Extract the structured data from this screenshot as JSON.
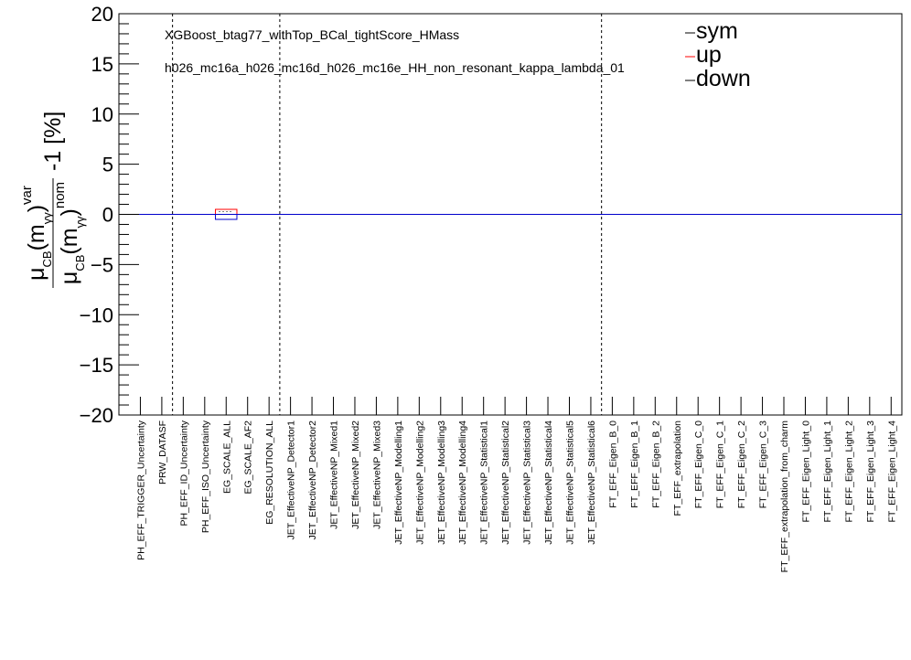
{
  "chart_data": {
    "type": "bar",
    "ylabel": "μ_CB(m_γγ)^var / μ_CB(m_γγ)^nom -1 [%]",
    "ylim": [
      -20,
      20
    ],
    "yticks": [
      -20,
      -15,
      -10,
      -5,
      0,
      5,
      10,
      15,
      20
    ],
    "annotations": [
      "XGBoost_btag77_withTop_BCal_tightScore_HMass",
      "h026_mc16a_h026_mc16d_h026_mc16e_HH_non_resonant_kappa_lambda_01"
    ],
    "legend_position": "top-right",
    "separator_after_category": [
      1,
      6,
      21
    ],
    "series": [
      {
        "name": "sym",
        "color": "#000000"
      },
      {
        "name": "up",
        "color": "#ff0000"
      },
      {
        "name": "down",
        "color": "#000000"
      }
    ],
    "categories": [
      "PH_EFF_TRIGGER_Uncertainty",
      "PRW_DATASF",
      "PH_EFF_ID_Uncertainty",
      "PH_EFF_ISO_Uncertainty",
      "EG_SCALE_ALL",
      "EG_SCALE_AF2",
      "EG_RESOLUTION_ALL",
      "JET_EffectiveNP_Detector1",
      "JET_EffectiveNP_Detector2",
      "JET_EffectiveNP_Mixed1",
      "JET_EffectiveNP_Mixed2",
      "JET_EffectiveNP_Mixed3",
      "JET_EffectiveNP_Modelling1",
      "JET_EffectiveNP_Modelling2",
      "JET_EffectiveNP_Modelling3",
      "JET_EffectiveNP_Modelling4",
      "JET_EffectiveNP_Statistical1",
      "JET_EffectiveNP_Statistical2",
      "JET_EffectiveNP_Statistical3",
      "JET_EffectiveNP_Statistical4",
      "JET_EffectiveNP_Statistical5",
      "JET_EffectiveNP_Statistical6",
      "FT_EFF_Eigen_B_0",
      "FT_EFF_Eigen_B_1",
      "FT_EFF_Eigen_B_2",
      "FT_EFF_extrapolation",
      "FT_EFF_Eigen_C_0",
      "FT_EFF_Eigen_C_1",
      "FT_EFF_Eigen_C_2",
      "FT_EFF_Eigen_C_3",
      "FT_EFF_extrapolation_from_charm",
      "FT_EFF_Eigen_Light_0",
      "FT_EFF_Eigen_Light_1",
      "FT_EFF_Eigen_Light_2",
      "FT_EFF_Eigen_Light_3",
      "FT_EFF_Eigen_Light_4"
    ],
    "highlight": {
      "category": "EG_SCALE_ALL",
      "up": 0.5,
      "down": -0.5
    }
  }
}
